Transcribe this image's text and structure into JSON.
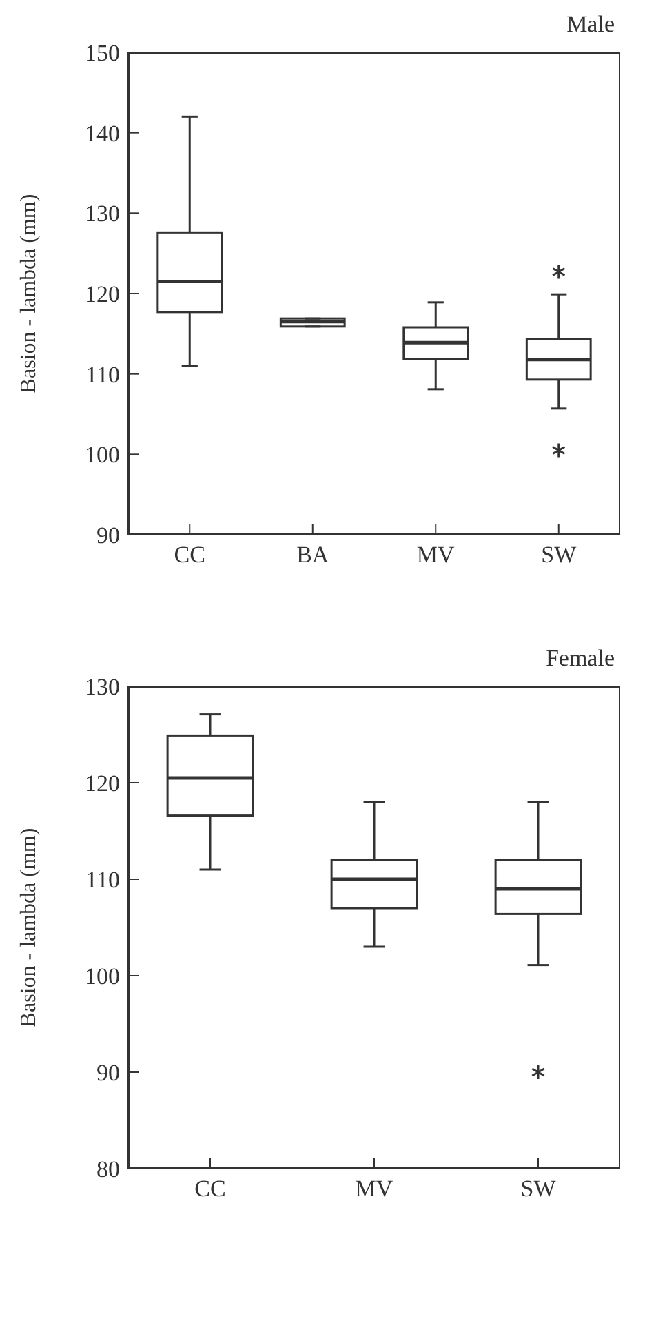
{
  "chart_data": [
    {
      "type": "box",
      "title": "Male",
      "ylabel": "Basion - lambda  (mm)",
      "categories": [
        "CC",
        "BA",
        "MV",
        "SW"
      ],
      "ylim": [
        90,
        150
      ],
      "yticks": [
        90,
        100,
        110,
        120,
        130,
        140,
        150
      ],
      "boxes": [
        {
          "low": 111,
          "q1": 117.7,
          "median": 121.5,
          "q3": 127.6,
          "high": 142
        },
        {
          "low": 115.9,
          "q1": 115.9,
          "median": 116.5,
          "q3": 116.9,
          "high": 116.9
        },
        {
          "low": 108.1,
          "q1": 111.9,
          "median": 113.9,
          "q3": 115.8,
          "high": 118.9
        },
        {
          "low": 105.7,
          "q1": 109.3,
          "median": 111.8,
          "q3": 114.3,
          "high": 119.9,
          "outliers": [
            122.7,
            100.5
          ]
        }
      ]
    },
    {
      "type": "box",
      "title": "Female",
      "ylabel": "Basion - lambda  (mm)",
      "categories": [
        "CC",
        "MV",
        "SW"
      ],
      "ylim": [
        80,
        130
      ],
      "yticks": [
        80,
        90,
        100,
        110,
        120,
        130
      ],
      "boxes": [
        {
          "low": 111,
          "q1": 116.6,
          "median": 120.5,
          "q3": 124.9,
          "high": 127.1
        },
        {
          "low": 103,
          "q1": 107,
          "median": 110,
          "q3": 112,
          "high": 118
        },
        {
          "low": 101.1,
          "q1": 106.4,
          "median": 109,
          "q3": 112,
          "high": 118,
          "outliers": [
            90
          ]
        }
      ]
    }
  ]
}
